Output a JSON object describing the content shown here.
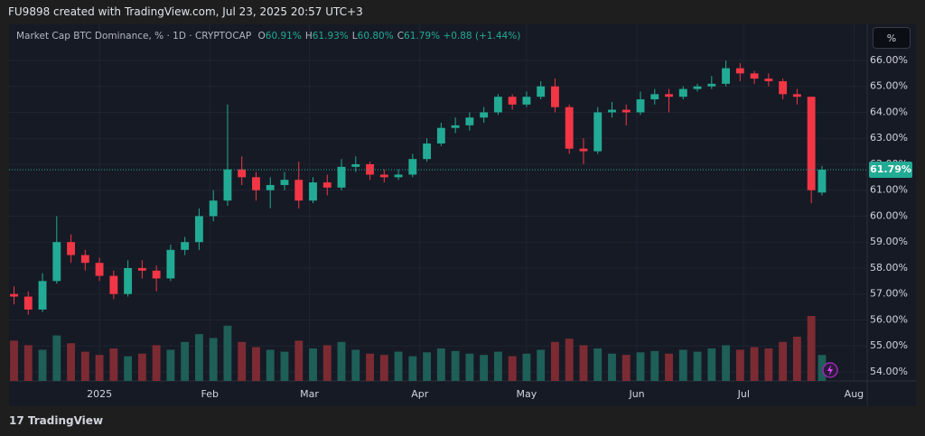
{
  "header": "FU9898 created with TradingView.com, Jul 23, 2025 20:57 UTC+3",
  "brand": "TradingView",
  "unit_button": "%",
  "chart_data": {
    "type": "candlestick",
    "legend": {
      "symbol": "Market Cap BTC Dominance, % · 1D · CRYPTOCAP",
      "items": [
        {
          "key": "O",
          "value": "60.91%"
        },
        {
          "key": "H",
          "value": "61.93%"
        },
        {
          "key": "L",
          "value": "60.80%"
        },
        {
          "key": "C",
          "value": "61.79%"
        }
      ],
      "change": "+0.88 (+1.44%)"
    },
    "up_color": "#22ab94",
    "down_color": "#f23645",
    "volume_up_color": "#1e5f58",
    "volume_down_color": "#7c2b33",
    "x": [
      -24,
      -20,
      -16,
      -12,
      -8,
      -4,
      0,
      4,
      8,
      12,
      16,
      20,
      24,
      28,
      32,
      36,
      40,
      44,
      48,
      52,
      56,
      60,
      64,
      68,
      72,
      76,
      80,
      84,
      88,
      92,
      96,
      100,
      104,
      108,
      112,
      116,
      120,
      124,
      128,
      132,
      136,
      140,
      144,
      148,
      152,
      156,
      160,
      164,
      168,
      172,
      176,
      180,
      184,
      188,
      192,
      196,
      200,
      203
    ],
    "open": [
      57.0,
      56.9,
      56.4,
      57.5,
      59.0,
      58.5,
      58.2,
      57.7,
      57.0,
      58.0,
      57.9,
      57.6,
      58.7,
      59.0,
      60.0,
      60.6,
      61.8,
      61.5,
      61.0,
      61.2,
      61.4,
      60.6,
      61.3,
      61.1,
      61.9,
      62.0,
      61.6,
      61.5,
      61.6,
      62.2,
      62.8,
      63.4,
      63.5,
      63.8,
      64.0,
      64.6,
      64.3,
      64.6,
      65.0,
      64.2,
      62.6,
      62.5,
      64.0,
      64.1,
      64.0,
      64.5,
      64.7,
      64.6,
      64.9,
      65.0,
      65.1,
      65.7,
      65.5,
      65.3,
      65.2,
      64.7,
      64.6,
      60.91
    ],
    "high": [
      57.3,
      57.1,
      57.8,
      60.0,
      59.3,
      58.7,
      58.4,
      57.9,
      58.3,
      58.3,
      58.1,
      58.9,
      59.2,
      60.3,
      61.0,
      64.3,
      62.3,
      61.7,
      61.5,
      61.7,
      62.1,
      61.5,
      61.6,
      62.2,
      62.3,
      62.1,
      61.8,
      61.8,
      62.4,
      63.0,
      63.6,
      63.8,
      64.0,
      64.2,
      64.7,
      64.7,
      64.8,
      65.2,
      65.3,
      64.3,
      63.0,
      64.2,
      64.4,
      64.3,
      64.8,
      64.9,
      64.9,
      65.0,
      65.1,
      65.4,
      66.0,
      65.9,
      65.6,
      65.5,
      65.3,
      64.9,
      64.6,
      61.93
    ],
    "low": [
      56.6,
      56.2,
      56.3,
      57.4,
      58.2,
      57.9,
      57.5,
      56.8,
      56.9,
      57.6,
      57.1,
      57.5,
      58.5,
      58.7,
      59.8,
      60.4,
      61.2,
      60.6,
      60.3,
      61.0,
      60.3,
      60.5,
      60.8,
      61.0,
      61.7,
      61.4,
      61.3,
      61.4,
      61.5,
      62.1,
      62.7,
      63.2,
      63.3,
      63.6,
      63.9,
      64.1,
      64.2,
      64.5,
      64.0,
      62.4,
      62.0,
      62.4,
      63.8,
      63.5,
      63.9,
      64.3,
      64.0,
      64.5,
      64.8,
      64.9,
      65.0,
      65.2,
      65.1,
      65.0,
      64.5,
      64.3,
      60.5,
      60.8
    ],
    "close": [
      56.9,
      56.4,
      57.5,
      59.0,
      58.5,
      58.2,
      57.7,
      57.0,
      58.0,
      57.9,
      57.6,
      58.7,
      59.0,
      60.0,
      60.6,
      61.8,
      61.5,
      61.0,
      61.2,
      61.4,
      60.6,
      61.3,
      61.1,
      61.9,
      62.0,
      61.6,
      61.5,
      61.6,
      62.2,
      62.8,
      63.4,
      63.5,
      63.8,
      64.0,
      64.6,
      64.3,
      64.6,
      65.0,
      64.2,
      62.6,
      62.5,
      64.0,
      64.1,
      64.0,
      64.5,
      64.7,
      64.6,
      64.9,
      65.0,
      65.1,
      65.7,
      65.5,
      65.3,
      65.2,
      64.7,
      64.6,
      61.0,
      61.79
    ],
    "volume": [
      62,
      55,
      48,
      70,
      58,
      45,
      40,
      50,
      38,
      42,
      55,
      48,
      60,
      72,
      66,
      85,
      60,
      52,
      48,
      45,
      62,
      50,
      55,
      60,
      48,
      42,
      40,
      45,
      38,
      44,
      50,
      46,
      42,
      40,
      45,
      38,
      42,
      48,
      60,
      65,
      55,
      50,
      42,
      40,
      44,
      46,
      42,
      48,
      45,
      50,
      55,
      48,
      52,
      50,
      60,
      68,
      100,
      40
    ],
    "last_price": {
      "value": 61.79,
      "label": "61.79%"
    },
    "xlim": [
      -25.4,
      215.7
    ],
    "xticks": [
      {
        "value": 0,
        "label": "2025"
      },
      {
        "value": 31,
        "label": "Feb"
      },
      {
        "value": 59,
        "label": "Mar"
      },
      {
        "value": 90,
        "label": "Apr"
      },
      {
        "value": 120,
        "label": "May"
      },
      {
        "value": 151,
        "label": "Jun"
      },
      {
        "value": 181,
        "label": "Jul"
      },
      {
        "value": 212,
        "label": "Aug"
      }
    ],
    "ylim": [
      53.65,
      67.39
    ],
    "yticks": [
      {
        "value": 54,
        "label": "54.00%"
      },
      {
        "value": 55,
        "label": "55.00%"
      },
      {
        "value": 56,
        "label": "56.00%"
      },
      {
        "value": 57,
        "label": "57.00%"
      },
      {
        "value": 58,
        "label": "58.00%"
      },
      {
        "value": 59,
        "label": "59.00%"
      },
      {
        "value": 60,
        "label": "60.00%"
      },
      {
        "value": 61,
        "label": "61.00%"
      },
      {
        "value": 62,
        "label": "62.00%"
      },
      {
        "value": 63,
        "label": "63.00%"
      },
      {
        "value": 64,
        "label": "64.00%"
      },
      {
        "value": 65,
        "label": "65.00%"
      },
      {
        "value": 66,
        "label": "66.00%"
      }
    ],
    "grid": true
  }
}
